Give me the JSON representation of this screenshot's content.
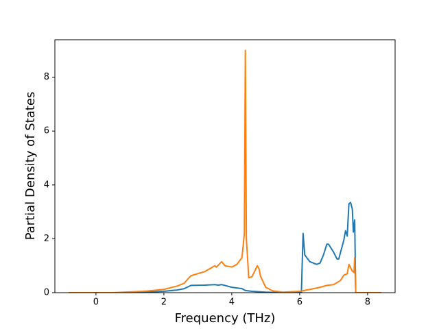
{
  "chart_data": {
    "type": "line",
    "x_label": "Frequency (THz)",
    "y_label": "Partial Density of States",
    "xlim": [
      -1.21,
      8.81
    ],
    "ylim": [
      0,
      9.39
    ],
    "xticks": [
      0,
      2,
      4,
      6,
      8
    ],
    "yticks": [
      0,
      2,
      4,
      6,
      8
    ],
    "grid": false,
    "series": [
      {
        "color": "#1f77b4",
        "x": [
          -0.8,
          0.5,
          1.0,
          1.5,
          2.0,
          2.4,
          2.6,
          2.8,
          3.2,
          3.5,
          3.6,
          3.7,
          4.0,
          4.3,
          4.4,
          4.6,
          5.0,
          5.5,
          6.05,
          6.1,
          6.15,
          6.3,
          6.5,
          6.6,
          6.7,
          6.8,
          6.85,
          7.0,
          7.1,
          7.15,
          7.3,
          7.35,
          7.4,
          7.45,
          7.5,
          7.55,
          7.58,
          7.62,
          7.65,
          8.4
        ],
        "values": [
          0,
          0,
          0.01,
          0.02,
          0.05,
          0.1,
          0.15,
          0.27,
          0.28,
          0.3,
          0.28,
          0.3,
          0.2,
          0.15,
          0.08,
          0.05,
          0.02,
          0,
          0,
          2.2,
          1.4,
          1.15,
          1.05,
          1.1,
          1.4,
          1.8,
          1.8,
          1.5,
          1.25,
          1.25,
          1.95,
          2.3,
          2.1,
          3.3,
          3.35,
          3.1,
          2.25,
          2.7,
          0,
          0
        ]
      },
      {
        "color": "#ff7f0e",
        "x": [
          -0.8,
          0.5,
          1.0,
          1.5,
          2.0,
          2.4,
          2.6,
          2.7,
          2.8,
          3.2,
          3.5,
          3.55,
          3.7,
          3.8,
          4.0,
          4.15,
          4.3,
          4.37,
          4.4,
          4.43,
          4.5,
          4.6,
          4.75,
          4.8,
          4.85,
          5.0,
          5.2,
          5.5,
          6.0,
          6.3,
          6.6,
          6.8,
          7.0,
          7.2,
          7.3,
          7.4,
          7.45,
          7.55,
          7.6,
          7.62,
          7.65,
          8.4
        ],
        "values": [
          0,
          0,
          0.03,
          0.06,
          0.12,
          0.25,
          0.35,
          0.5,
          0.63,
          0.78,
          1.0,
          0.95,
          1.15,
          1.0,
          0.95,
          1.05,
          1.3,
          2.2,
          9.0,
          2.0,
          0.55,
          0.6,
          1.0,
          0.9,
          0.6,
          0.2,
          0.07,
          0.02,
          0.05,
          0.12,
          0.2,
          0.27,
          0.3,
          0.45,
          0.65,
          0.7,
          1.05,
          0.8,
          0.75,
          1.3,
          0,
          0
        ]
      }
    ]
  }
}
